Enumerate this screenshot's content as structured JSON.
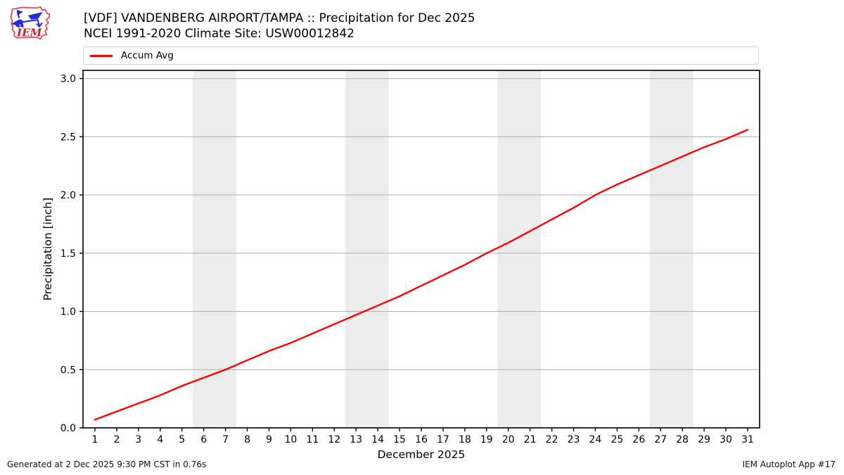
{
  "header": {
    "title": "[VDF] VANDENBERG AIRPORT/TAMPA :: Precipitation for Dec 2025",
    "subtitle": "NCEI 1991-2020 Climate Site: USW00012842",
    "logo_text": "IEM"
  },
  "legend": {
    "items": [
      {
        "label": "Accum Avg",
        "color": "#ff0000"
      }
    ]
  },
  "footer": {
    "left": "Generated at 2 Dec 2025 9:30 PM CST in 0.76s",
    "right": "IEM Autoplot App #17"
  },
  "colors": {
    "line": "#ff0000",
    "band": "#ececec",
    "grid": "#b0b0b0",
    "spine": "#000000",
    "tick_text": "#000000",
    "logo_outline": "#e4455a",
    "logo_icon": "#2a2ad4",
    "logo_text": "#c2222e"
  },
  "chart_data": {
    "type": "line",
    "title": "[VDF] VANDENBERG AIRPORT/TAMPA :: Precipitation for Dec 2025",
    "subtitle": "NCEI 1991-2020 Climate Site: USW00012842",
    "xlabel": "December 2025",
    "ylabel": "Precipitation [inch]",
    "x": [
      1,
      2,
      3,
      4,
      5,
      6,
      7,
      8,
      9,
      10,
      11,
      12,
      13,
      14,
      15,
      16,
      17,
      18,
      19,
      20,
      21,
      22,
      23,
      24,
      25,
      26,
      27,
      28,
      29,
      30,
      31
    ],
    "series": [
      {
        "name": "Accum Avg",
        "color": "#ff0000",
        "values": [
          0.07,
          0.14,
          0.21,
          0.28,
          0.36,
          0.43,
          0.5,
          0.58,
          0.66,
          0.73,
          0.81,
          0.89,
          0.97,
          1.05,
          1.13,
          1.22,
          1.31,
          1.4,
          1.5,
          1.59,
          1.69,
          1.79,
          1.89,
          2.0,
          2.09,
          2.17,
          2.25,
          2.33,
          2.41,
          2.48,
          2.56
        ],
        "style": "solid"
      }
    ],
    "xlim": [
      0.45,
      31.55
    ],
    "ylim": [
      0.0,
      3.07
    ],
    "xticks": [
      1,
      2,
      3,
      4,
      5,
      6,
      7,
      8,
      9,
      10,
      11,
      12,
      13,
      14,
      15,
      16,
      17,
      18,
      19,
      20,
      21,
      22,
      23,
      24,
      25,
      26,
      27,
      28,
      29,
      30,
      31
    ],
    "yticks": [
      0.0,
      0.5,
      1.0,
      1.5,
      2.0,
      2.5,
      3.0
    ],
    "weekend_bands": [
      [
        5.5,
        7.5
      ],
      [
        12.5,
        14.5
      ],
      [
        19.5,
        21.5
      ],
      [
        26.5,
        28.5
      ]
    ],
    "grid": "horizontal gridlines on",
    "legend_position": "top"
  }
}
